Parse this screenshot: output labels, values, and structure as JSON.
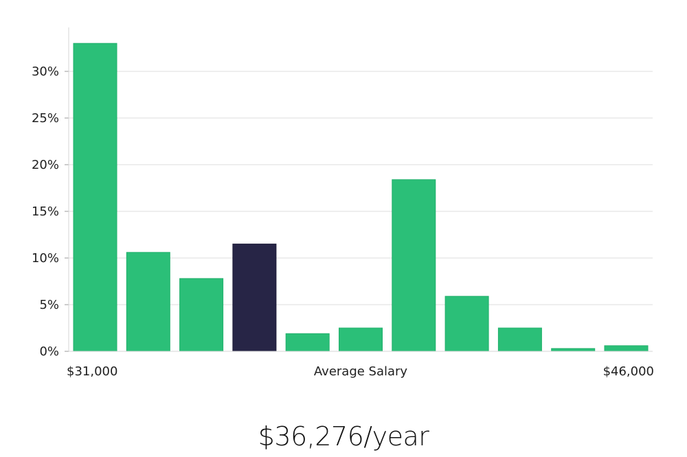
{
  "chart_data": {
    "type": "bar",
    "title": "",
    "xlabel": "Average Salary",
    "ylabel": "",
    "x_min_label": "$31,000",
    "x_max_label": "$46,000",
    "ylim": [
      0,
      35
    ],
    "yticks": [
      0,
      5,
      10,
      15,
      20,
      25,
      30
    ],
    "ytick_labels": [
      "0%",
      "5%",
      "10%",
      "15%",
      "20%",
      "25%",
      "30%"
    ],
    "grid": true,
    "values": [
      33.0,
      10.6,
      7.8,
      11.5,
      1.9,
      2.5,
      18.4,
      5.9,
      2.5,
      0.3,
      0.6
    ],
    "highlight_index": 3,
    "bar_color": "#2bbf78",
    "highlight_color": "#272546"
  },
  "summary": {
    "average_salary": "$36,276/year"
  }
}
